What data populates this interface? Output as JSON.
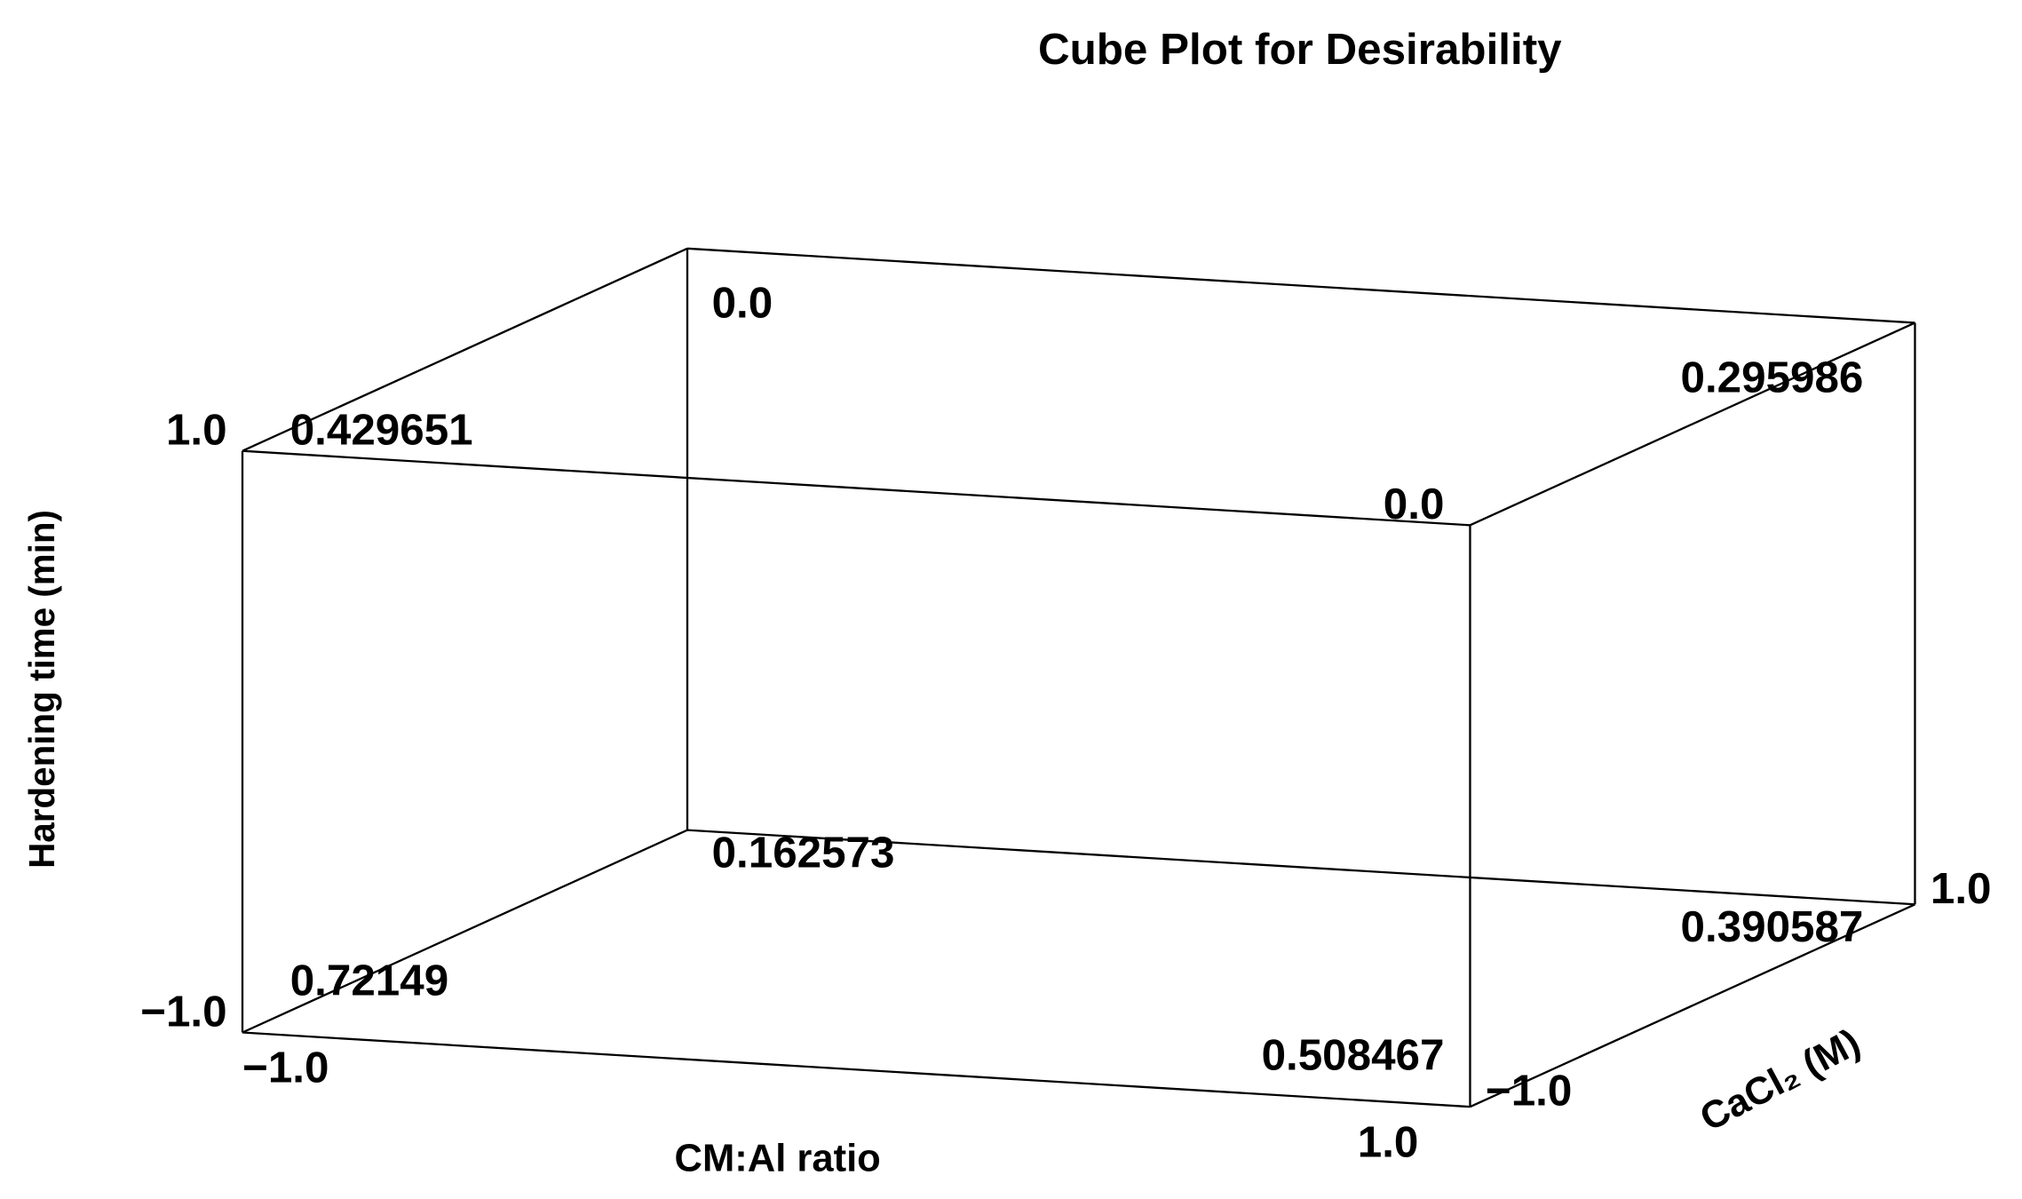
{
  "chart_data": {
    "type": "cube",
    "title": "Cube Plot for Desirability",
    "x_label": "CM:Al ratio",
    "y_label": "CaCl₂ (M)",
    "z_label": "Hardening time (min)",
    "xlim": [
      -1,
      1
    ],
    "ylim": [
      -1,
      1
    ],
    "zlim": [
      -1,
      1
    ],
    "xticks": [
      {
        "value": -1,
        "label": "−1.0"
      },
      {
        "value": 1,
        "label": "1.0"
      }
    ],
    "yticks": [
      {
        "value": -1,
        "label": "−1.0"
      },
      {
        "value": 1,
        "label": "1.0"
      }
    ],
    "zticks": [
      {
        "value": -1,
        "label": "−1.0"
      },
      {
        "value": 1,
        "label": "1.0"
      }
    ],
    "x": [
      -1,
      1,
      -1,
      1,
      -1,
      1,
      -1,
      1
    ],
    "y": [
      -1,
      -1,
      -1,
      -1,
      1,
      1,
      1,
      1
    ],
    "z": [
      -1,
      -1,
      1,
      1,
      -1,
      -1,
      1,
      1
    ],
    "values": [
      0.72149,
      0.508467,
      0.429651,
      0,
      0.162573,
      0.390587,
      0,
      0.295986
    ],
    "value_labels": [
      "0.72149",
      "0.508467",
      "0.429651",
      "0.0",
      "0.162573",
      "0.390587",
      "0.0",
      "0.295986"
    ],
    "color": "#000000"
  }
}
